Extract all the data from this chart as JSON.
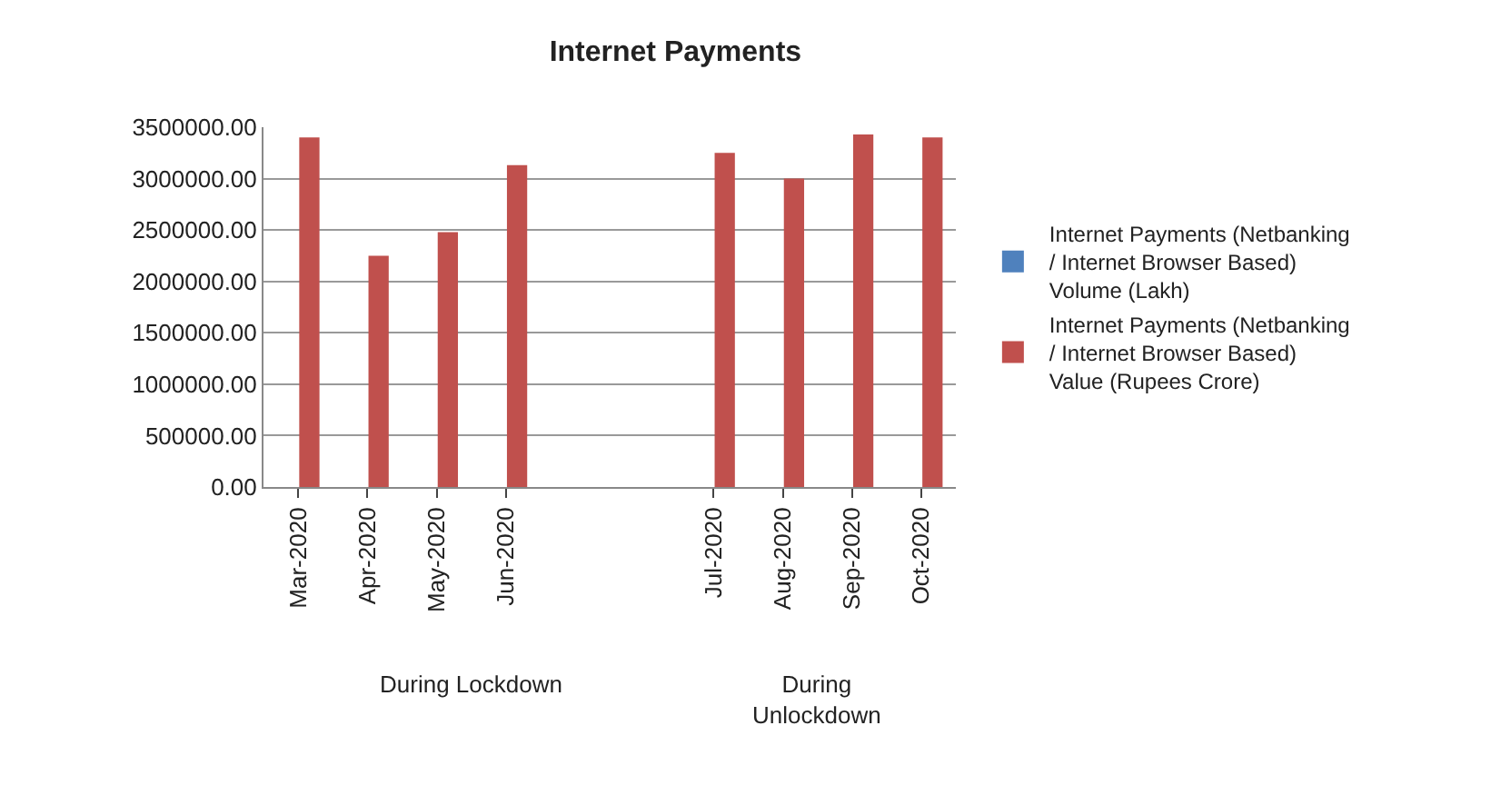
{
  "chart_data": {
    "type": "bar",
    "title": "Internet Payments",
    "categories": [
      "Mar-2020",
      "Apr-2020",
      "May-2020",
      "Jun-2020",
      null,
      null,
      "Jul-2020",
      "Aug-2020",
      "Sep-2020",
      "Oct-2020"
    ],
    "series": [
      {
        "name": "Internet Payments (Netbanking / Internet Browser Based) Volume (Lakh)",
        "color": "#4f81bd",
        "values": [
          0,
          0,
          0,
          0,
          null,
          null,
          0,
          0,
          0,
          0
        ]
      },
      {
        "name": "Internet Payments (Netbanking / Internet Browser Based) Value (Rupees Crore)",
        "color": "#c0504d",
        "values": [
          3400000,
          2250000,
          2480000,
          3130000,
          null,
          null,
          3250000,
          3000000,
          3430000,
          3400000
        ]
      }
    ],
    "ylim": [
      0,
      3500000
    ],
    "yticks": [
      {
        "value": 0,
        "label": "0.00"
      },
      {
        "value": 500000,
        "label": "500000.00"
      },
      {
        "value": 1000000,
        "label": "1000000.00"
      },
      {
        "value": 1500000,
        "label": "1500000.00"
      },
      {
        "value": 2000000,
        "label": "2000000.00"
      },
      {
        "value": 2500000,
        "label": "2500000.00"
      },
      {
        "value": 3000000,
        "label": "3000000.00"
      },
      {
        "value": 3500000,
        "label": "3500000.00"
      }
    ],
    "annotations": [
      "During Lockdown",
      "During Unlockdown"
    ],
    "grid": "y",
    "legend": "right"
  }
}
